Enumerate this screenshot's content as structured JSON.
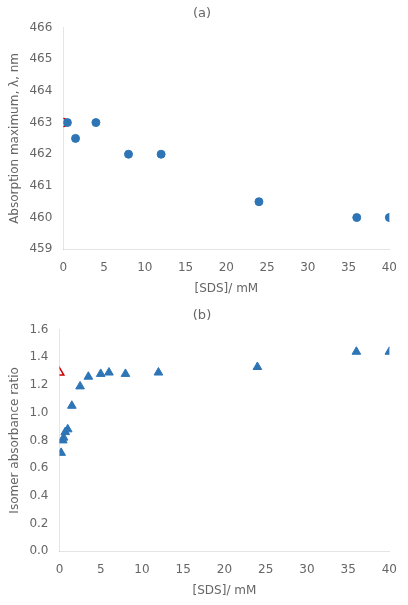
{
  "chart_data": [
    {
      "type": "scatter",
      "title": "(a)",
      "xlabel": "[SDS]/ mM",
      "ylabel": "Absorption maximum, λ, nm",
      "xlim": [
        0,
        40
      ],
      "ylim": [
        459,
        466
      ],
      "xticks": [
        0,
        5,
        10,
        15,
        20,
        25,
        30,
        35,
        40
      ],
      "yticks": [
        459,
        460,
        461,
        462,
        463,
        464,
        465,
        466
      ],
      "grid": false,
      "series": [
        {
          "color": "#2e75b6",
          "marker": "circle",
          "x": [
            0.5,
            1.5,
            4.0,
            8.0,
            12.0,
            24.0,
            36.0,
            40.0
          ],
          "values": [
            463.0,
            462.5,
            463.0,
            462.0,
            462.0,
            460.5,
            460.0,
            460.0
          ]
        },
        {
          "color": "#cc0000",
          "marker": "circle_open",
          "x": [
            0.0
          ],
          "values": [
            463.0
          ]
        }
      ]
    },
    {
      "type": "scatter",
      "title": "(b)",
      "xlabel": "[SDS]/ mM",
      "ylabel": "Isomer absorbance ratio",
      "xlim": [
        0,
        40
      ],
      "ylim": [
        0,
        1.6
      ],
      "xticks": [
        0,
        5,
        10,
        15,
        20,
        25,
        30,
        35,
        40
      ],
      "yticks": [
        {
          "value": 0,
          "label": "0.0"
        },
        0.2,
        0.4,
        0.6,
        0.8,
        {
          "value": 1.0,
          "label": "1.0"
        },
        1.2,
        1.4,
        1.6
      ],
      "grid": false,
      "series": [
        {
          "color": "#2e75b6",
          "marker": "triangle",
          "x": [
            0.2,
            0.4,
            0.5,
            0.7,
            1.0,
            1.5,
            2.5,
            3.5,
            5.0,
            6.0,
            8.0,
            12.0,
            24.0,
            36.0,
            40.0
          ],
          "values": [
            0.71,
            0.8,
            0.82,
            0.86,
            0.88,
            1.05,
            1.19,
            1.26,
            1.28,
            1.29,
            1.28,
            1.29,
            1.33,
            1.44,
            1.44
          ]
        },
        {
          "color": "#cc0000",
          "marker": "triangle_open",
          "x": [
            0.0
          ],
          "values": [
            1.29
          ]
        }
      ]
    }
  ]
}
